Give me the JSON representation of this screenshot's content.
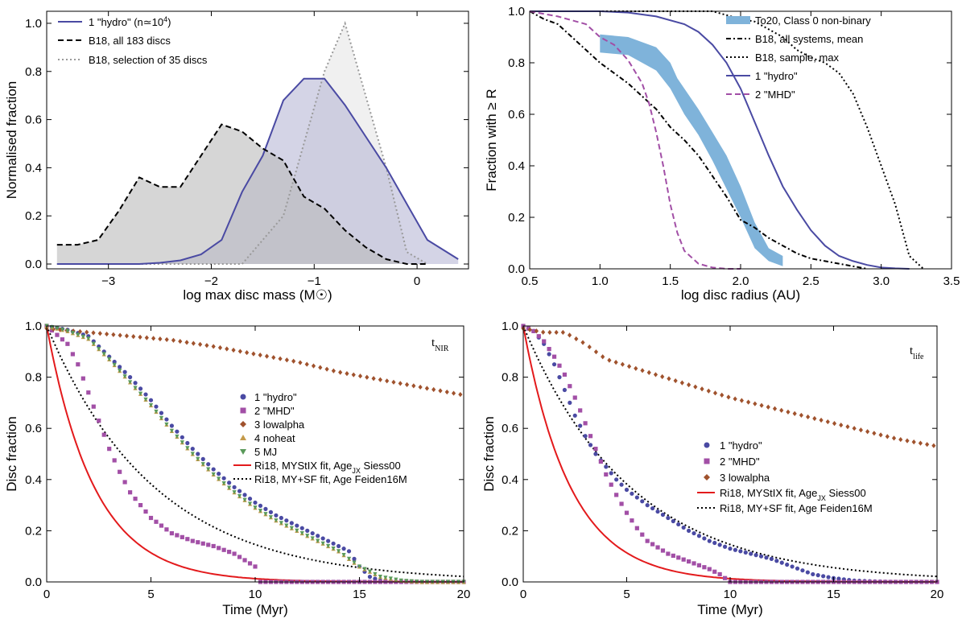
{
  "chart_data": [
    {
      "type": "area",
      "id": "A",
      "xlabel": "log max disc mass (M",
      "xlabel_suffix": ")",
      "ylabel": "Normalised fraction",
      "xlim": [
        -3.6,
        0.5
      ],
      "ylim": [
        -0.02,
        1.05
      ],
      "xticks": [
        -3,
        -2,
        -1,
        0
      ],
      "xtick_labels": [
        "−3",
        "−2",
        "−1",
        "0"
      ],
      "yticks": [
        0.0,
        0.2,
        0.4,
        0.6,
        0.8,
        1.0
      ],
      "ytick_labels": [
        "0.0",
        "0.2",
        "0.4",
        "0.6",
        "0.8",
        "1.0"
      ],
      "series": [
        {
          "name": "B18, selection of 35 discs",
          "style": "dotted",
          "color": "#999999",
          "fill": "#e6e6e6",
          "x": [
            -3.5,
            -3.3,
            -3.1,
            -2.9,
            -2.7,
            -2.5,
            -2.3,
            -2.1,
            -1.9,
            -1.7,
            -1.5,
            -1.3,
            -1.1,
            -0.9,
            -0.7,
            -0.5,
            -0.3,
            -0.1,
            0.1
          ],
          "y": [
            0,
            0,
            0,
            0,
            0,
            0,
            0,
            0,
            0,
            0,
            0.1,
            0.2,
            0.5,
            0.8,
            1.0,
            0.7,
            0.4,
            0.05,
            0
          ]
        },
        {
          "name": "1 \"hydro\" (n≃10",
          "name_sup": "4",
          "name_suffix": ")",
          "style": "solid",
          "color": "#4a4aa3",
          "fill": "#b8b8d6",
          "x": [
            -3.5,
            -3.3,
            -3.1,
            -2.9,
            -2.7,
            -2.5,
            -2.3,
            -2.1,
            -1.9,
            -1.7,
            -1.5,
            -1.3,
            -1.1,
            -0.9,
            -0.7,
            -0.5,
            -0.3,
            -0.1,
            0.1,
            0.4
          ],
          "y": [
            0,
            0,
            0,
            0,
            0,
            0.005,
            0.015,
            0.04,
            0.1,
            0.3,
            0.45,
            0.68,
            0.77,
            0.77,
            0.66,
            0.53,
            0.4,
            0.25,
            0.1,
            0.02
          ]
        },
        {
          "name": "B18, all 183 discs",
          "style": "dashed",
          "color": "#000000",
          "fill": "#bbbbbb",
          "x": [
            -3.5,
            -3.3,
            -3.1,
            -2.9,
            -2.7,
            -2.5,
            -2.3,
            -2.1,
            -1.9,
            -1.7,
            -1.5,
            -1.3,
            -1.1,
            -0.9,
            -0.7,
            -0.5,
            -0.3,
            -0.1,
            0.1
          ],
          "y": [
            0.08,
            0.08,
            0.1,
            0.22,
            0.36,
            0.32,
            0.32,
            0.45,
            0.58,
            0.55,
            0.48,
            0.43,
            0.28,
            0.23,
            0.14,
            0.07,
            0.02,
            0,
            0
          ]
        }
      ],
      "legend_order": [
        1,
        2,
        0
      ],
      "legend_position": "top-left"
    },
    {
      "type": "line",
      "id": "B",
      "xlabel": "log disc radius (AU)",
      "ylabel": "Fraction with ≥ R",
      "xlim": [
        0.5,
        3.5
      ],
      "ylim": [
        0,
        1.0
      ],
      "xticks": [
        0.5,
        1.0,
        1.5,
        2.0,
        2.5,
        3.0,
        3.5
      ],
      "xtick_labels": [
        "0.5",
        "1.0",
        "1.5",
        "2.0",
        "2.5",
        "3.0",
        "3.5"
      ],
      "yticks": [
        0.0,
        0.2,
        0.4,
        0.6,
        0.8,
        1.0
      ],
      "ytick_labels": [
        "0.0",
        "0.2",
        "0.4",
        "0.6",
        "0.8",
        "1.0"
      ],
      "band": {
        "name": "To20, Class 0 non-binary",
        "color": "#7fb3da",
        "x": [
          1.0,
          1.2,
          1.4,
          1.5,
          1.55,
          1.6,
          1.7,
          1.8,
          1.9,
          2.0,
          2.1,
          2.2,
          2.3
        ],
        "upper": [
          0.91,
          0.9,
          0.86,
          0.8,
          0.74,
          0.7,
          0.62,
          0.53,
          0.44,
          0.32,
          0.18,
          0.08,
          0.05
        ],
        "lower": [
          0.84,
          0.83,
          0.77,
          0.7,
          0.65,
          0.6,
          0.52,
          0.42,
          0.31,
          0.2,
          0.08,
          0.03,
          0.01
        ]
      },
      "series": [
        {
          "name": "B18, all systems, mean",
          "style": "dashdot",
          "color": "#000000",
          "x": [
            0.5,
            0.6,
            0.7,
            0.8,
            0.9,
            1.0,
            1.1,
            1.2,
            1.3,
            1.4,
            1.5,
            1.6,
            1.7,
            1.8,
            1.9,
            2.0,
            2.1,
            2.2,
            2.3,
            2.4,
            2.5,
            2.6,
            2.7,
            2.8,
            2.9
          ],
          "y": [
            1.0,
            0.97,
            0.95,
            0.9,
            0.85,
            0.8,
            0.76,
            0.72,
            0.67,
            0.62,
            0.55,
            0.5,
            0.44,
            0.36,
            0.28,
            0.19,
            0.16,
            0.12,
            0.09,
            0.06,
            0.04,
            0.03,
            0.02,
            0.01,
            0.0
          ]
        },
        {
          "name": "B18, sample, max",
          "style": "dotted",
          "color": "#000000",
          "x": [
            0.5,
            1.0,
            1.5,
            1.8,
            2.0,
            2.1,
            2.2,
            2.3,
            2.4,
            2.5,
            2.6,
            2.7,
            2.8,
            2.9,
            3.0,
            3.1,
            3.2,
            3.3
          ],
          "y": [
            1.0,
            1.0,
            1.0,
            1.0,
            0.97,
            0.96,
            0.93,
            0.9,
            0.85,
            0.82,
            0.8,
            0.76,
            0.68,
            0.55,
            0.4,
            0.25,
            0.05,
            0.0
          ]
        },
        {
          "name": "1 \"hydro\"",
          "style": "solid",
          "color": "#4a4aa3",
          "x": [
            0.5,
            0.8,
            1.0,
            1.2,
            1.4,
            1.6,
            1.7,
            1.8,
            1.9,
            2.0,
            2.1,
            2.2,
            2.3,
            2.4,
            2.5,
            2.6,
            2.7,
            2.8,
            2.9,
            3.0,
            3.1,
            3.2
          ],
          "y": [
            1.0,
            1.0,
            1.0,
            0.995,
            0.98,
            0.95,
            0.92,
            0.87,
            0.8,
            0.7,
            0.57,
            0.44,
            0.32,
            0.23,
            0.15,
            0.09,
            0.05,
            0.03,
            0.015,
            0.005,
            0.002,
            0.0
          ]
        },
        {
          "name": "2 \"MHD\"",
          "style": "dashed",
          "color": "#a24fa6",
          "x": [
            0.5,
            0.7,
            0.9,
            1.0,
            1.1,
            1.2,
            1.3,
            1.35,
            1.4,
            1.45,
            1.5,
            1.55,
            1.6,
            1.7,
            1.8,
            1.9,
            2.0
          ],
          "y": [
            1.0,
            0.98,
            0.95,
            0.9,
            0.87,
            0.81,
            0.72,
            0.64,
            0.53,
            0.4,
            0.25,
            0.14,
            0.07,
            0.02,
            0.005,
            0.0,
            0.0
          ]
        }
      ],
      "legend_position": "top-right"
    },
    {
      "type": "scatter",
      "id": "C",
      "corner_label": "t",
      "corner_label_sub": "NIR",
      "xlabel": "Time (Myr)",
      "ylabel": "Disc fraction",
      "xlim": [
        0,
        20
      ],
      "ylim": [
        0,
        1.0
      ],
      "xticks": [
        0,
        5,
        10,
        15,
        20
      ],
      "xtick_labels": [
        "0",
        "5",
        "10",
        "15",
        "20"
      ],
      "yticks": [
        0.0,
        0.2,
        0.4,
        0.6,
        0.8,
        1.0
      ],
      "ytick_labels": [
        "0.0",
        "0.2",
        "0.4",
        "0.6",
        "0.8",
        "1.0"
      ],
      "series": [
        {
          "name": "1 \"hydro\"",
          "marker": "circle",
          "color": "#4a4aa3",
          "x": [
            0,
            1,
            2,
            3,
            4,
            5,
            6,
            7,
            8,
            9,
            10,
            11,
            12,
            13,
            14,
            14.5,
            15,
            15.5,
            16,
            17,
            18,
            20
          ],
          "y": [
            1.0,
            0.985,
            0.96,
            0.88,
            0.8,
            0.71,
            0.61,
            0.52,
            0.44,
            0.37,
            0.31,
            0.26,
            0.22,
            0.18,
            0.14,
            0.12,
            0.06,
            0.02,
            0.005,
            0.0,
            0.0,
            0.0
          ]
        },
        {
          "name": "2 \"MHD\"",
          "marker": "square",
          "color": "#a24fa6",
          "x": [
            0,
            1,
            1.5,
            2,
            2.5,
            3,
            3.5,
            4,
            4.5,
            5,
            6,
            7,
            8,
            9,
            10,
            10.2,
            11,
            12,
            14,
            16,
            18,
            20
          ],
          "y": [
            1.0,
            0.93,
            0.85,
            0.74,
            0.63,
            0.52,
            0.43,
            0.35,
            0.3,
            0.25,
            0.19,
            0.16,
            0.14,
            0.11,
            0.06,
            0.0,
            0.0,
            0.0,
            0.0,
            0.0,
            0.0,
            0.0
          ]
        },
        {
          "name": "3 lowalpha",
          "marker": "diamond",
          "color": "#a0522d",
          "x": [
            0,
            2,
            4,
            6,
            8,
            10,
            12,
            14,
            16,
            18,
            20
          ],
          "y": [
            0.99,
            0.975,
            0.96,
            0.945,
            0.92,
            0.89,
            0.86,
            0.82,
            0.79,
            0.76,
            0.73
          ]
        },
        {
          "name": "4 noheat",
          "marker": "triangle-up",
          "color": "#c49a4a",
          "x": [
            0,
            1,
            2,
            3,
            4,
            5,
            6,
            7,
            8,
            9,
            10,
            11,
            12,
            13,
            14,
            15,
            16,
            17,
            18,
            20
          ],
          "y": [
            1.0,
            0.98,
            0.95,
            0.87,
            0.78,
            0.69,
            0.59,
            0.5,
            0.42,
            0.35,
            0.29,
            0.24,
            0.2,
            0.16,
            0.12,
            0.06,
            0.02,
            0.005,
            0.0,
            0.0
          ]
        },
        {
          "name": "5 MJ",
          "marker": "triangle-down",
          "color": "#5a9a5a",
          "x": [
            0,
            1,
            2,
            3,
            4,
            5,
            6,
            7,
            8,
            9,
            10,
            11,
            12,
            13,
            14,
            15,
            16,
            17,
            18,
            20
          ],
          "y": [
            1.0,
            0.98,
            0.95,
            0.87,
            0.78,
            0.69,
            0.59,
            0.5,
            0.42,
            0.35,
            0.29,
            0.24,
            0.2,
            0.16,
            0.12,
            0.06,
            0.02,
            0.005,
            0.0,
            0.0
          ]
        }
      ],
      "curves": [
        {
          "name": "Ri18, MYStIX fit, Age",
          "name_sub": "JX",
          "name_suffix": " Siess00",
          "style": "solid",
          "color": "#e31a1c",
          "tau": 2.3
        },
        {
          "name": "Ri18, MY+SF fit, Age Feiden16M",
          "style": "dotted",
          "color": "#000000",
          "tau": 5.2
        }
      ],
      "legend_position": "center-right"
    },
    {
      "type": "scatter",
      "id": "D",
      "corner_label": "t",
      "corner_label_sub": "life",
      "xlabel": "Time (Myr)",
      "ylabel": "Disc fraction",
      "xlim": [
        0,
        20
      ],
      "ylim": [
        0,
        1.0
      ],
      "xticks": [
        0,
        5,
        10,
        15,
        20
      ],
      "xtick_labels": [
        "0",
        "5",
        "10",
        "15",
        "20"
      ],
      "yticks": [
        0.0,
        0.2,
        0.4,
        0.6,
        0.8,
        1.0
      ],
      "ytick_labels": [
        "0.0",
        "0.2",
        "0.4",
        "0.6",
        "0.8",
        "1.0"
      ],
      "series": [
        {
          "name": "1 \"hydro\"",
          "marker": "circle",
          "color": "#4a4aa3",
          "x": [
            0,
            0.5,
            1,
            1.5,
            2,
            2.5,
            3,
            3.5,
            4,
            4.5,
            5,
            6,
            7,
            8,
            9,
            10,
            11,
            12,
            13,
            14,
            15,
            16,
            17,
            18,
            20
          ],
          "y": [
            1.0,
            0.98,
            0.93,
            0.85,
            0.75,
            0.65,
            0.57,
            0.5,
            0.45,
            0.4,
            0.36,
            0.3,
            0.25,
            0.2,
            0.16,
            0.13,
            0.11,
            0.09,
            0.06,
            0.03,
            0.015,
            0.005,
            0.002,
            0.0,
            0.0
          ]
        },
        {
          "name": "2 \"MHD\"",
          "marker": "square",
          "color": "#a24fa6",
          "x": [
            0,
            0.5,
            1,
            1.5,
            2,
            2.5,
            3,
            3.5,
            4,
            4.5,
            5,
            5.5,
            6,
            7,
            8,
            9,
            9.5,
            10,
            12,
            14,
            16,
            18,
            20
          ],
          "y": [
            1.0,
            0.98,
            0.94,
            0.88,
            0.81,
            0.72,
            0.62,
            0.52,
            0.42,
            0.34,
            0.27,
            0.21,
            0.16,
            0.11,
            0.08,
            0.05,
            0.03,
            0.0,
            0.0,
            0.0,
            0.0,
            0.0,
            0.0
          ]
        },
        {
          "name": "3 lowalpha",
          "marker": "diamond",
          "color": "#a0522d",
          "x": [
            0,
            1,
            2,
            3,
            4,
            6,
            8,
            10,
            12,
            14,
            16,
            18,
            20
          ],
          "y": [
            0.99,
            0.975,
            0.975,
            0.93,
            0.87,
            0.82,
            0.77,
            0.72,
            0.68,
            0.64,
            0.6,
            0.56,
            0.53
          ]
        }
      ],
      "curves": [
        {
          "name": "Ri18, MYStIX fit, Age",
          "name_sub": "JX",
          "name_suffix": " Siess00",
          "style": "solid",
          "color": "#e31a1c",
          "tau": 2.3
        },
        {
          "name": "Ri18, MY+SF fit, Age Feiden16M",
          "style": "dotted",
          "color": "#000000",
          "tau": 5.2
        }
      ],
      "legend_position": "center-right"
    }
  ]
}
